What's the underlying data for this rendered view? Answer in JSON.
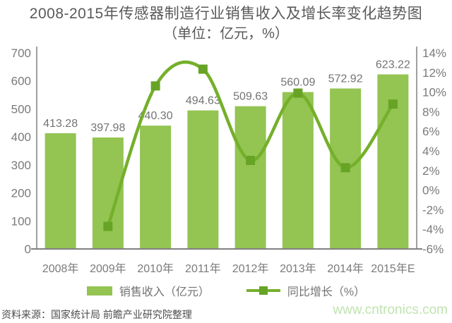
{
  "title": {
    "line1": "2008-2015年传感器制造行业销售收入及增长率变化趋势图",
    "line2": "（单位：亿元，%）"
  },
  "chart_data": {
    "type": "bar+line combo",
    "categories": [
      "2008年",
      "2009年",
      "2010年",
      "2011年",
      "2012年",
      "2013年",
      "2014年",
      "2015年E"
    ],
    "series": [
      {
        "name": "销售收入（亿元）",
        "type": "bar",
        "axis": "left",
        "values": [
          413.28,
          397.98,
          440.3,
          494.63,
          509.63,
          560.09,
          572.92,
          623.22
        ],
        "labels": [
          "413.28",
          "397.98",
          "440.30",
          "494.63",
          "509.63",
          "560.09",
          "572.92",
          "623.22"
        ]
      },
      {
        "name": "同比增长（%）",
        "type": "line",
        "axis": "right",
        "values": [
          null,
          -3.7,
          10.63,
          12.34,
          3.03,
          9.9,
          2.29,
          8.78
        ]
      }
    ],
    "y_left": {
      "min": 0,
      "max": 700,
      "step": 100,
      "tick_labels": [
        "0",
        "100",
        "200",
        "300",
        "400",
        "500",
        "600",
        "700"
      ]
    },
    "y_right": {
      "min": -6,
      "max": 14,
      "step": 2,
      "tick_labels": [
        "-6%",
        "-4%",
        "-2%",
        "0%",
        "2%",
        "4%",
        "6%",
        "8%",
        "10%",
        "12%",
        "14%"
      ]
    },
    "grid": false,
    "legend_position": "bottom"
  },
  "legend": {
    "items": [
      {
        "label": "销售收入（亿元）",
        "swatch": "bar"
      },
      {
        "label": "同比增长（%）",
        "swatch": "line"
      }
    ]
  },
  "footer": {
    "source": "资料来源：国家统计局 前瞻产业研究院整理",
    "watermark": "www.cntronics.com"
  },
  "colors": {
    "bar": "#94c452",
    "line": "#74b02a",
    "marker": "#67a426",
    "axis": "#a0a0a0",
    "axis_bottom": "#808080",
    "tick_text": "#7a7a7a",
    "value_text": "#737373",
    "title_text": "#595959",
    "watermark_text": "#c0e3b0"
  }
}
